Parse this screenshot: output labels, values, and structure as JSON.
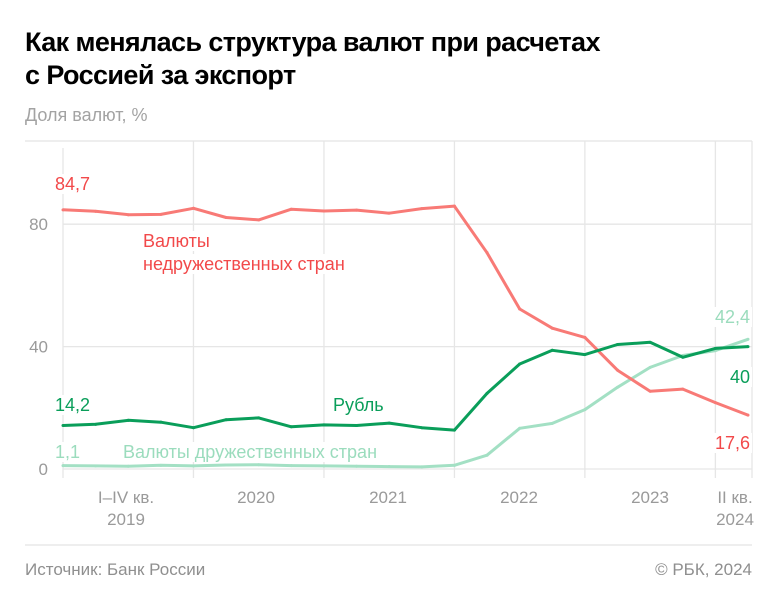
{
  "header": {
    "title_lines": [
      "Как менялась структура валют при расчетах",
      "с Россией за экспорт"
    ],
    "subtitle": "Доля валют, %"
  },
  "footer": {
    "source": "Источник: Банк России",
    "copyright": "© РБК, 2024"
  },
  "chart_data": {
    "type": "line",
    "title": "Как менялась структура валют при расчетах с Россией за экспорт",
    "ylabel": "Доля валют, %",
    "ylim": [
      0,
      100
    ],
    "yticks": [
      "0",
      "40",
      "80"
    ],
    "ytick_values": [
      0,
      40,
      80
    ],
    "grid": true,
    "x": [
      "2019 I кв.",
      "2019 II кв.",
      "2019 III кв.",
      "2019 IV кв.",
      "2020 I кв.",
      "2020 II кв.",
      "2020 III кв.",
      "2020 IV кв.",
      "2021 I кв.",
      "2021 II кв.",
      "2021 III кв.",
      "2021 IV кв.",
      "2022 I кв.",
      "2022 II кв.",
      "2022 III кв.",
      "2022 IV кв.",
      "2023 I кв.",
      "2023 II кв.",
      "2023 III кв.",
      "2023 IV кв.",
      "2024 I кв.",
      "2024 II кв."
    ],
    "xtick_labels": [
      {
        "lines": [
          "I–IV кв.",
          "2019"
        ]
      },
      {
        "lines": [
          "2020"
        ]
      },
      {
        "lines": [
          "2021"
        ]
      },
      {
        "lines": [
          "2022"
        ]
      },
      {
        "lines": [
          "2023"
        ]
      },
      {
        "lines": [
          "II кв.",
          "2024"
        ]
      }
    ],
    "series": [
      {
        "name": "Валюты недружественных стран",
        "name_lines": [
          "Валюты",
          "недружественных стран"
        ],
        "color": "#f87a76",
        "label_color": "#f2494a",
        "values": [
          84.7,
          84.2,
          83.1,
          83.2,
          85.2,
          82.2,
          81.4,
          84.9,
          84.3,
          84.6,
          83.6,
          85.1,
          85.9,
          70.7,
          52.3,
          46.0,
          43.0,
          32.3,
          25.4,
          26.1,
          21.7,
          17.6
        ],
        "start_label": "84,7",
        "end_label": "17,6"
      },
      {
        "name": "Рубль",
        "name_lines": [
          "Рубль"
        ],
        "color": "#0a9e5a",
        "label_color": "#0a9e5a",
        "values": [
          14.2,
          14.6,
          15.9,
          15.3,
          13.5,
          16.1,
          16.7,
          13.8,
          14.4,
          14.2,
          15.0,
          13.5,
          12.7,
          24.7,
          34.3,
          38.8,
          37.4,
          40.7,
          41.4,
          36.5,
          39.4,
          40.0
        ],
        "start_label": "14,2",
        "end_label": "40"
      },
      {
        "name": "Валюты дружественных стран",
        "name_lines": [
          "Валюты дружественных стран"
        ],
        "color": "#a3e0c4",
        "label_color": "#9bdcbd",
        "values": [
          1.1,
          1.0,
          0.9,
          1.2,
          1.0,
          1.3,
          1.4,
          1.1,
          1.0,
          0.9,
          0.8,
          0.7,
          1.2,
          4.5,
          13.3,
          14.9,
          19.4,
          26.7,
          33.2,
          37.1,
          38.7,
          42.4
        ],
        "start_label": "1,1",
        "end_label": "42,4"
      }
    ]
  }
}
